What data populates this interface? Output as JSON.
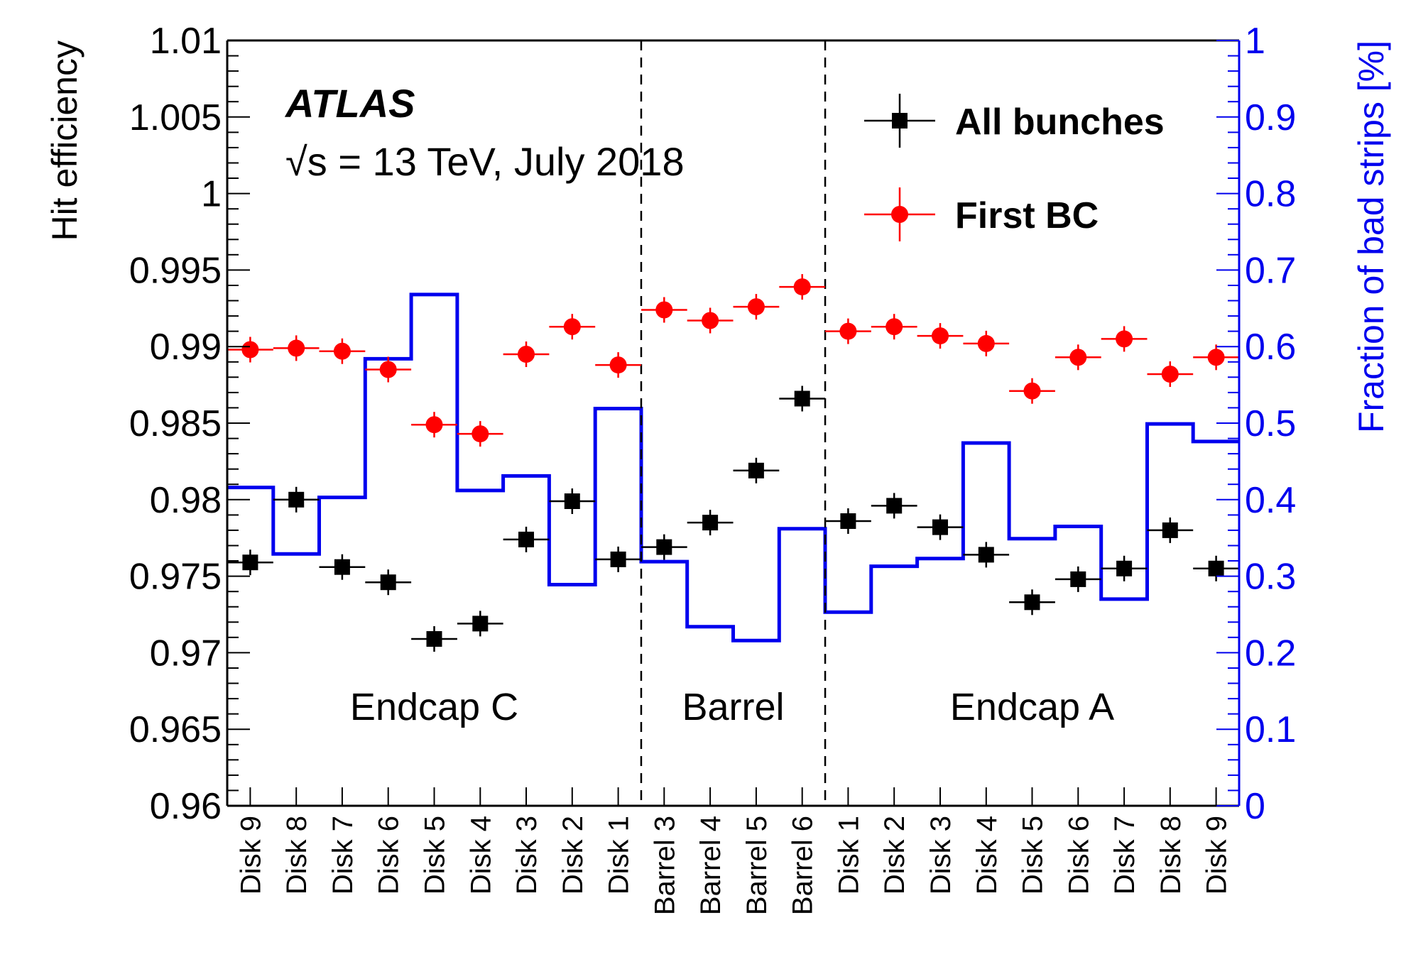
{
  "chart_data": {
    "type": "scatter",
    "experiment_label": "ATLAS",
    "subtitle": "√s = 13 TeV, July 2018",
    "ylabel": "Hit efficiency",
    "ylabel_right": "Fraction of bad strips [%]",
    "ylim": [
      0.96,
      1.01
    ],
    "ylim_right": [
      0,
      1
    ],
    "yticks": [
      "1.01",
      "1.005",
      "1",
      "0.995",
      "0.99",
      "0.985",
      "0.98",
      "0.975",
      "0.97",
      "0.965",
      "0.96"
    ],
    "yticks_right": [
      "1",
      "0.9",
      "0.8",
      "0.7",
      "0.6",
      "0.5",
      "0.4",
      "0.3",
      "0.2",
      "0.1",
      "0"
    ],
    "categories": [
      "Disk 9",
      "Disk 8",
      "Disk 7",
      "Disk 6",
      "Disk 5",
      "Disk 4",
      "Disk 3",
      "Disk 2",
      "Disk 1",
      "Barrel 3",
      "Barrel 4",
      "Barrel 5",
      "Barrel 6",
      "Disk 1",
      "Disk 2",
      "Disk 3",
      "Disk 4",
      "Disk 5",
      "Disk 6",
      "Disk 7",
      "Disk 8",
      "Disk 9"
    ],
    "regions": [
      {
        "label": "Endcap C",
        "start": 0,
        "end": 9
      },
      {
        "label": "Barrel",
        "start": 9,
        "end": 13
      },
      {
        "label": "Endcap A",
        "start": 13,
        "end": 22
      }
    ],
    "series": [
      {
        "name": "All bunches",
        "color": "#000000",
        "marker": "square",
        "axis": "left",
        "values": [
          0.9759,
          0.98,
          0.9756,
          0.9746,
          0.9709,
          0.9719,
          0.9774,
          0.9799,
          0.9761,
          0.9769,
          0.9785,
          0.9819,
          0.9866,
          0.9786,
          0.9796,
          0.9782,
          0.9764,
          0.9733,
          0.9748,
          0.9755,
          0.978,
          0.9755
        ]
      },
      {
        "name": "First BC",
        "color": "#ff0000",
        "marker": "circle",
        "axis": "left",
        "values": [
          0.9898,
          0.9899,
          0.9897,
          0.9885,
          0.9849,
          0.9843,
          0.9895,
          0.9913,
          0.9888,
          0.9924,
          0.9917,
          0.9926,
          0.9939,
          0.991,
          0.9913,
          0.9907,
          0.9902,
          0.9871,
          0.9893,
          0.9905,
          0.9882,
          0.9893
        ]
      },
      {
        "name": "Fraction of bad strips",
        "color": "#0000ee",
        "type": "step",
        "axis": "right",
        "values": [
          0.416,
          0.329,
          0.403,
          0.584,
          0.668,
          0.412,
          0.431,
          0.289,
          0.519,
          0.319,
          0.234,
          0.216,
          0.362,
          0.253,
          0.313,
          0.323,
          0.474,
          0.349,
          0.365,
          0.27,
          0.499,
          0.476
        ]
      }
    ],
    "legend": {
      "position": "top-right",
      "entries": [
        "All bunches",
        "First BC"
      ]
    },
    "grid": false
  }
}
